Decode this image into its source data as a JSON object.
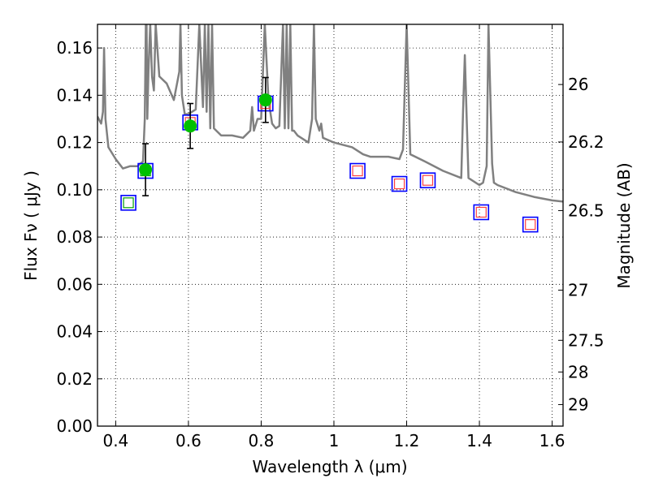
{
  "chart_data": {
    "type": "scatter",
    "xlabel": "Wavelength  λ (μm)",
    "ylabel": "Flux  Fν  ( μJy )",
    "ylabel_right": "Magnitude (AB)",
    "xlim": [
      0.35,
      1.63
    ],
    "ylim": [
      0.0,
      0.17
    ],
    "grid": true,
    "x_ticks": [
      0.4,
      0.6,
      0.8,
      1.0,
      1.2,
      1.4,
      1.6
    ],
    "x_tick_labels": [
      "0.4",
      "0.6",
      "0.8",
      "1",
      "1.2",
      "1.4",
      "1.6"
    ],
    "y_ticks": [
      0.0,
      0.02,
      0.04,
      0.06,
      0.08,
      0.1,
      0.12,
      0.14,
      0.16
    ],
    "y_tick_labels": [
      "0.00",
      "0.02",
      "0.04",
      "0.06",
      "0.08",
      "0.10",
      "0.12",
      "0.14",
      "0.16"
    ],
    "right_ticks": [
      {
        "mag": 26,
        "label": "26"
      },
      {
        "mag": 26.2,
        "label": "26.2"
      },
      {
        "mag": 26.5,
        "label": "26.5"
      },
      {
        "mag": 27,
        "label": "27"
      },
      {
        "mag": 27.5,
        "label": "27.5"
      },
      {
        "mag": 28,
        "label": "28"
      },
      {
        "mag": 29,
        "label": "29"
      }
    ],
    "series": [
      {
        "name": "model spectrum",
        "kind": "line",
        "color": "#808080",
        "x": [
          0.35,
          0.36,
          0.365,
          0.368,
          0.372,
          0.38,
          0.4,
          0.42,
          0.44,
          0.46,
          0.475,
          0.48,
          0.483,
          0.485,
          0.487,
          0.49,
          0.495,
          0.5,
          0.505,
          0.51,
          0.52,
          0.54,
          0.56,
          0.575,
          0.578,
          0.582,
          0.59,
          0.6,
          0.62,
          0.63,
          0.64,
          0.645,
          0.65,
          0.655,
          0.66,
          0.665,
          0.67,
          0.69,
          0.72,
          0.75,
          0.77,
          0.775,
          0.78,
          0.79,
          0.8,
          0.81,
          0.82,
          0.83,
          0.84,
          0.85,
          0.86,
          0.865,
          0.87,
          0.875,
          0.88,
          0.885,
          0.89,
          0.9,
          0.93,
          0.94,
          0.945,
          0.95,
          0.96,
          0.965,
          0.97,
          1.0,
          1.05,
          1.08,
          1.1,
          1.15,
          1.18,
          1.19,
          1.2,
          1.21,
          1.25,
          1.3,
          1.35,
          1.355,
          1.36,
          1.365,
          1.37,
          1.4,
          1.41,
          1.42,
          1.425,
          1.43,
          1.435,
          1.44,
          1.45,
          1.5,
          1.55,
          1.6,
          1.63
        ],
        "y": [
          0.131,
          0.128,
          0.133,
          0.16,
          0.13,
          0.118,
          0.113,
          0.109,
          0.11,
          0.11,
          0.112,
          0.13,
          0.17,
          0.17,
          0.13,
          0.15,
          0.17,
          0.148,
          0.142,
          0.17,
          0.148,
          0.145,
          0.138,
          0.15,
          0.17,
          0.14,
          0.132,
          0.132,
          0.134,
          0.17,
          0.135,
          0.17,
          0.133,
          0.17,
          0.126,
          0.17,
          0.126,
          0.123,
          0.123,
          0.122,
          0.125,
          0.135,
          0.125,
          0.13,
          0.13,
          0.17,
          0.138,
          0.128,
          0.126,
          0.127,
          0.17,
          0.126,
          0.17,
          0.126,
          0.17,
          0.125,
          0.125,
          0.123,
          0.12,
          0.13,
          0.17,
          0.13,
          0.125,
          0.128,
          0.122,
          0.12,
          0.118,
          0.115,
          0.114,
          0.114,
          0.113,
          0.117,
          0.17,
          0.115,
          0.112,
          0.108,
          0.105,
          0.133,
          0.157,
          0.13,
          0.105,
          0.102,
          0.103,
          0.11,
          0.17,
          0.14,
          0.111,
          0.103,
          0.102,
          0.099,
          0.097,
          0.0955,
          0.095
        ]
      },
      {
        "name": "model photometry (blue squares)",
        "kind": "marker",
        "color": "#0000ff",
        "marker": "square",
        "x": [
          0.435,
          0.482,
          0.605,
          0.812,
          1.065,
          1.18,
          1.258,
          1.405,
          1.54
        ],
        "y": [
          0.0945,
          0.108,
          0.1285,
          0.1365,
          0.108,
          0.1025,
          0.104,
          0.0905,
          0.0853
        ]
      },
      {
        "name": "inner squares",
        "kind": "marker",
        "colors": [
          "#00a000",
          "#00a000",
          "#ff4040",
          "#ff4040",
          "#ff4040",
          "#ff4040",
          "#ff4040",
          "#ff4040",
          "#ff4040"
        ],
        "marker": "square",
        "x": [
          0.435,
          0.482,
          0.605,
          0.812,
          1.065,
          1.18,
          1.258,
          1.405,
          1.54
        ],
        "y": [
          0.0945,
          0.108,
          0.1285,
          0.1365,
          0.108,
          0.1025,
          0.104,
          0.0905,
          0.0853
        ]
      },
      {
        "name": "observed photometry",
        "kind": "errorbar",
        "color": "#00c000",
        "marker": "circle",
        "x": [
          0.482,
          0.605,
          0.812
        ],
        "y": [
          0.1085,
          0.127,
          0.138
        ],
        "yerr": [
          0.011,
          0.0095,
          0.0095
        ]
      }
    ]
  }
}
